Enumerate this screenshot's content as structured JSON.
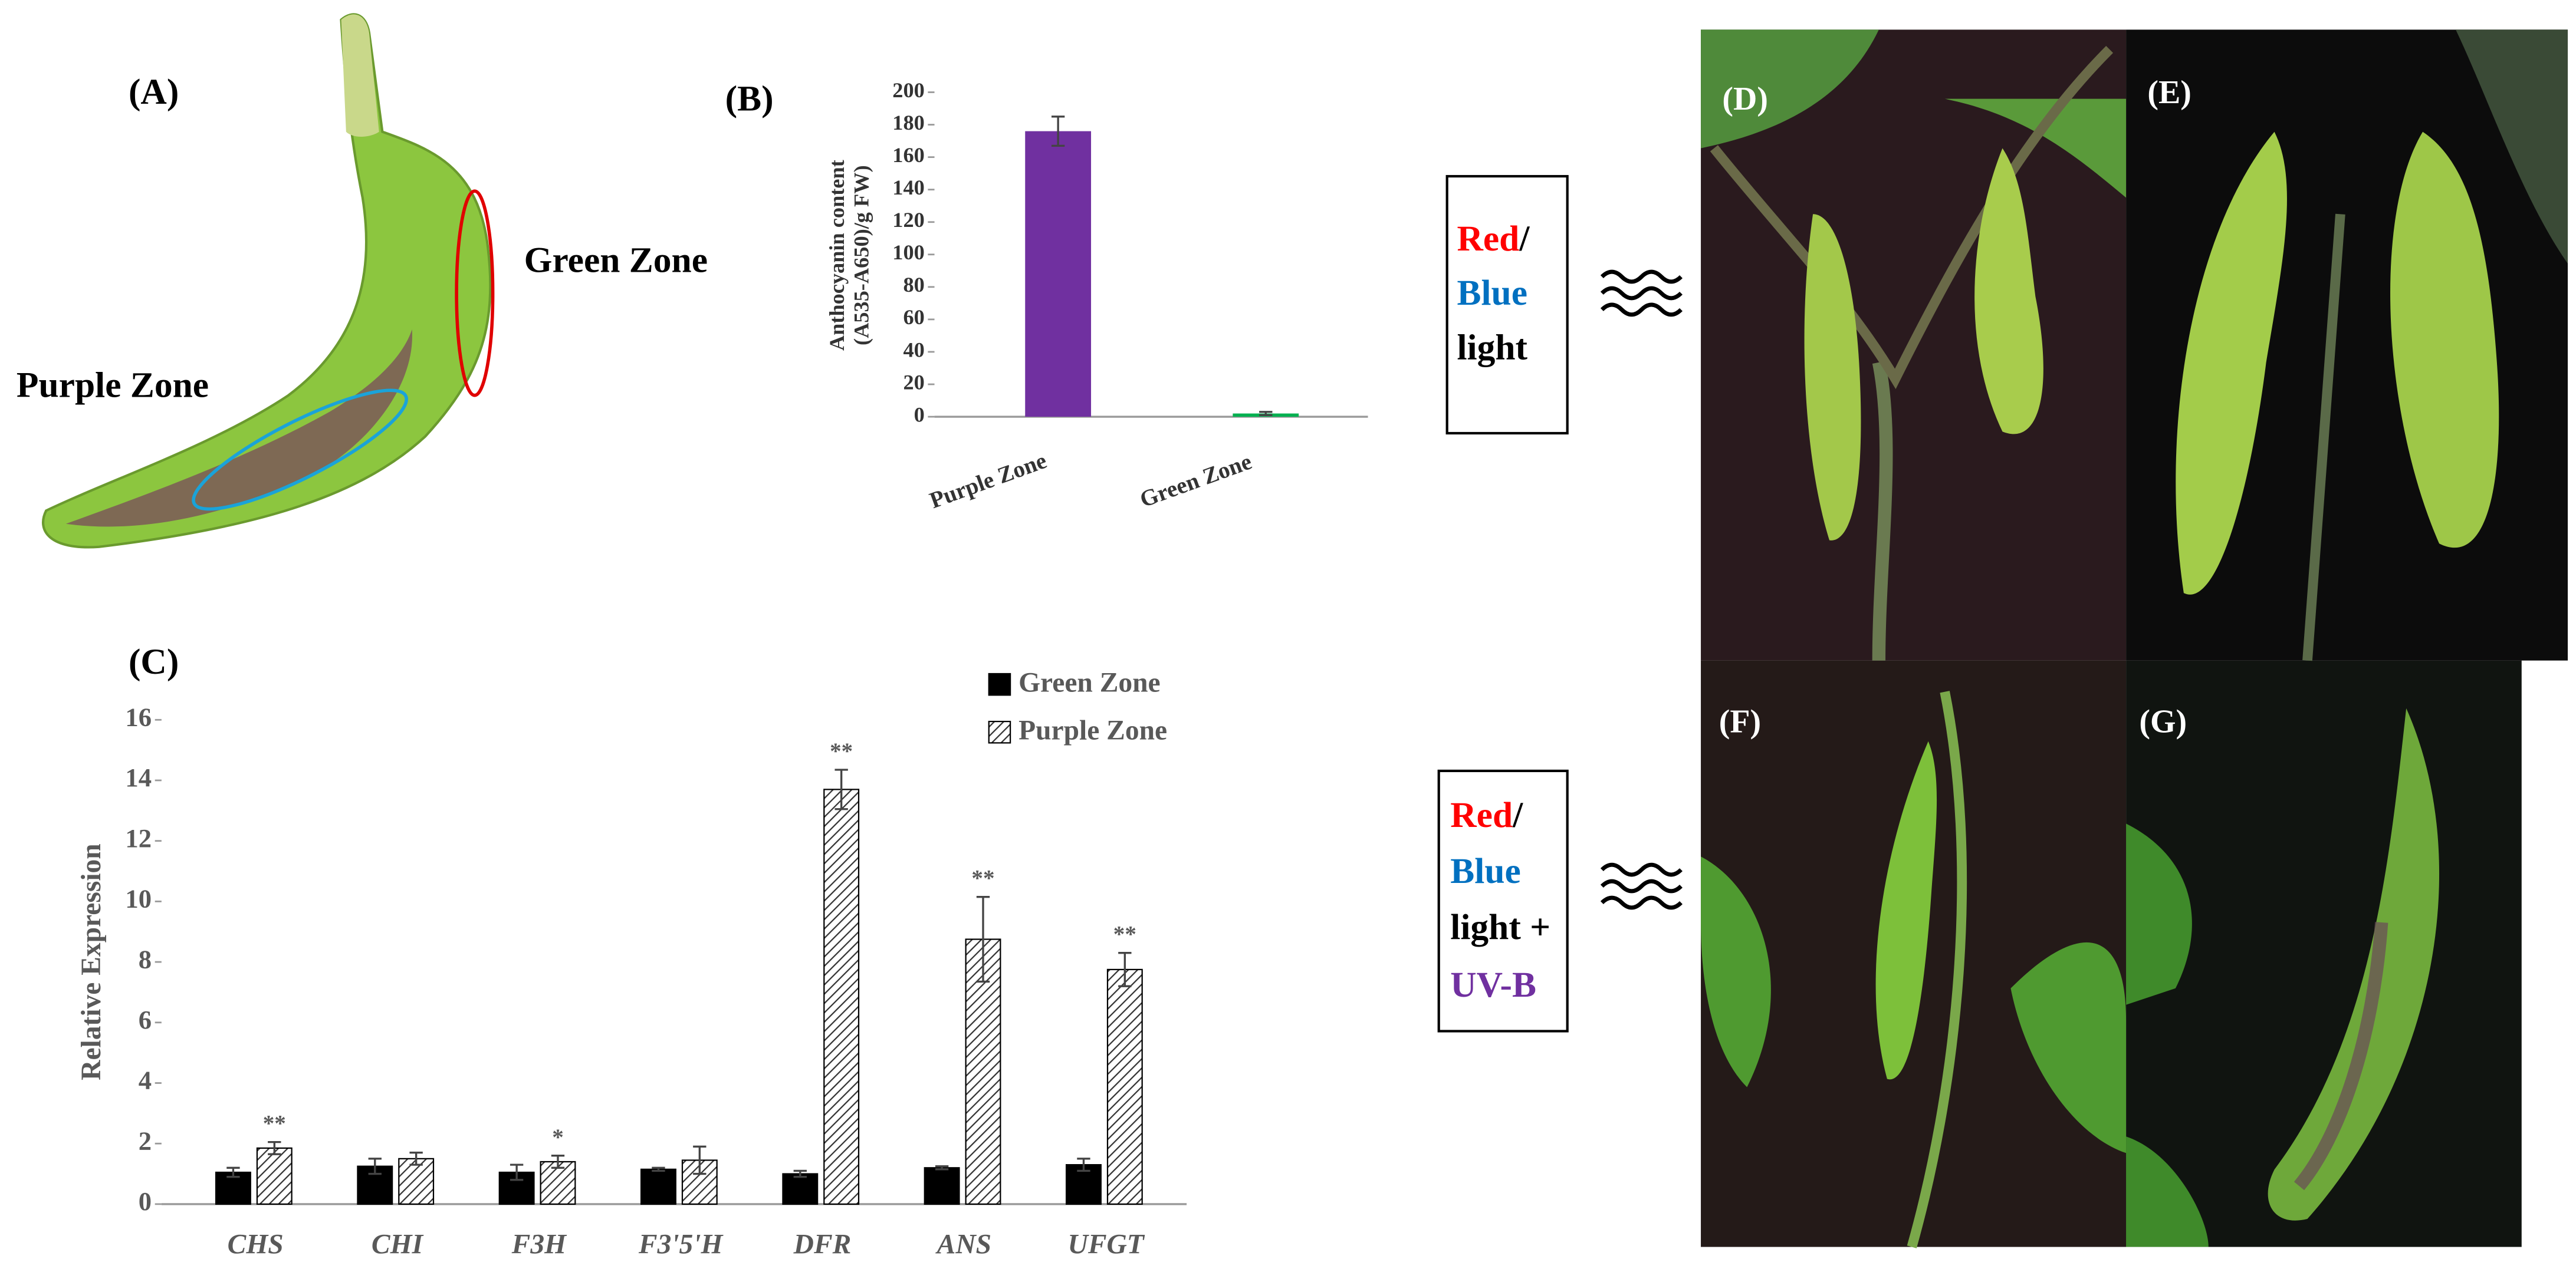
{
  "panel_labels": {
    "a": "(A)",
    "d": "(D)",
    "e": "(E)",
    "f": "(F)",
    "g": "(G)"
  },
  "annotations": {
    "green_zone": "Green Zone",
    "purple_zone": "Purple Zone"
  },
  "light_conditions": [
    {
      "red": "Red",
      "slash": "/",
      "blue": "Blue",
      "light": "light"
    },
    {
      "red": "Red",
      "slash": "/",
      "blue": "Blue",
      "light": "light +",
      "uvb": "UV-B"
    }
  ],
  "chart_data": [
    {
      "type": "bar",
      "title": "(B)",
      "ylabel": [
        "Anthocyanin content",
        "(A535-A650)/g  FW)"
      ],
      "categories": [
        "Purple Zone",
        "Green Zone"
      ],
      "values": [
        176,
        2
      ],
      "errors": [
        9,
        1
      ],
      "colors": [
        "#7030a0",
        "#00b050"
      ],
      "ylim": [
        0,
        200
      ],
      "yticks": [
        0,
        20,
        40,
        60,
        80,
        100,
        120,
        140,
        160,
        180,
        200
      ]
    },
    {
      "type": "bar",
      "title": "(C)",
      "ylabel": "Relative Expression",
      "categories": [
        "CHS",
        "CHI",
        "F3H",
        "F3'5'H",
        "DFR",
        "ANS",
        "UFGT"
      ],
      "series": [
        {
          "name": "Green Zone",
          "color": "#000000",
          "values": [
            1.05,
            1.25,
            1.05,
            1.15,
            1.0,
            1.2,
            1.3
          ],
          "errors": [
            0.15,
            0.25,
            0.25,
            0.05,
            0.1,
            0.05,
            0.2
          ]
        },
        {
          "name": "Purple Zone",
          "color": "hatch",
          "values": [
            1.85,
            1.5,
            1.4,
            1.45,
            13.7,
            8.75,
            7.75
          ],
          "errors": [
            0.2,
            0.2,
            0.2,
            0.45,
            0.65,
            1.4,
            0.55
          ]
        }
      ],
      "significance": [
        "**",
        null,
        "*",
        null,
        "**",
        "**",
        "**"
      ],
      "ylim": [
        0,
        16
      ],
      "yticks": [
        0,
        2,
        4,
        6,
        8,
        10,
        12,
        14,
        16
      ]
    }
  ]
}
